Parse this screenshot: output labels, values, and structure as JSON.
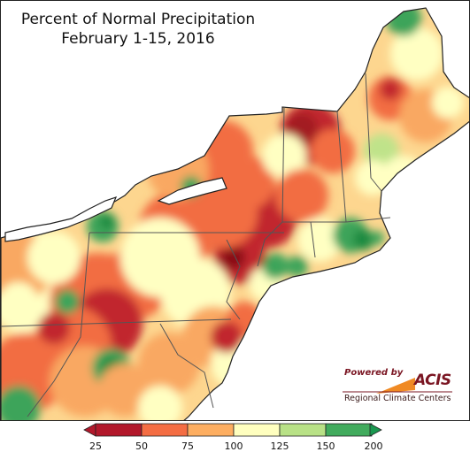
{
  "title": {
    "line1": "Percent of Normal Precipitation",
    "line2": "February 1-15, 2016"
  },
  "legend": {
    "bins": [
      {
        "color": "#b2182b"
      },
      {
        "color": "#f46d43"
      },
      {
        "color": "#fdae61"
      },
      {
        "color": "#ffffbf"
      },
      {
        "color": "#b8e186"
      },
      {
        "color": "#41ab5d"
      }
    ],
    "under_color": "#b2182b",
    "over_color": "#1a9850",
    "tick_labels": [
      "25",
      "50",
      "75",
      "100",
      "125",
      "150",
      "200"
    ]
  },
  "logo": {
    "powered_by": "Powered by",
    "name": "ACIS",
    "subtitle": "Regional Climate Centers"
  }
}
